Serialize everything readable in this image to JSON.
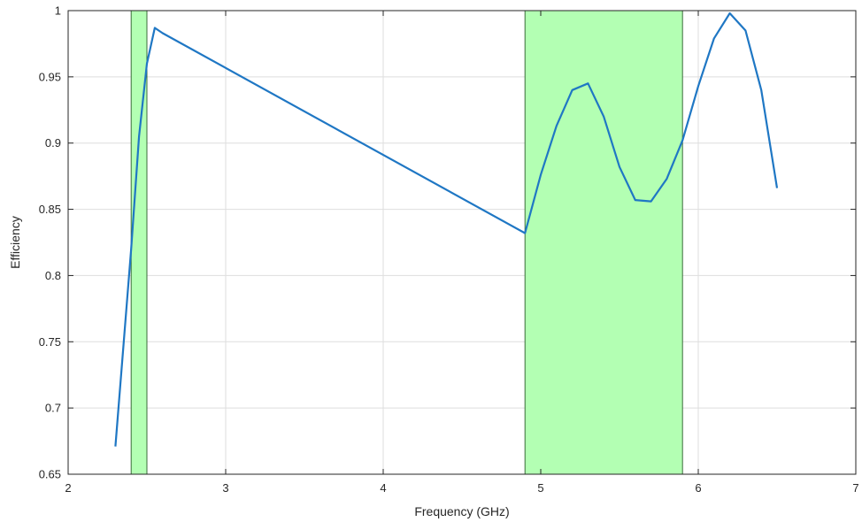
{
  "chart_data": {
    "type": "line",
    "title": "",
    "xlabel": "Frequency (GHz)",
    "ylabel": "Efficiency",
    "xlim": [
      2,
      7
    ],
    "ylim": [
      0.65,
      1
    ],
    "xticks": [
      2,
      3,
      4,
      5,
      6,
      7
    ],
    "xtick_labels": [
      "2",
      "3",
      "4",
      "5",
      "6",
      "7"
    ],
    "yticks": [
      0.65,
      0.7,
      0.75,
      0.8,
      0.85,
      0.9,
      0.95,
      1
    ],
    "ytick_labels": [
      "0.65",
      "0.7",
      "0.75",
      "0.8",
      "0.85",
      "0.9",
      "0.95",
      "1"
    ],
    "grid": true,
    "line_color": "#1f77c4",
    "band_color": "#b3ffb3",
    "band_edge_color": "#3a6b3a",
    "bands": [
      {
        "x0": 2.4,
        "x1": 2.5
      },
      {
        "x0": 4.9,
        "x1": 5.9
      }
    ],
    "series": [
      {
        "x": [
          2.3,
          2.4,
          2.45,
          2.5,
          2.55,
          2.6,
          4.9,
          5.0,
          5.1,
          5.2,
          5.3,
          5.4,
          5.5,
          5.6,
          5.7,
          5.8,
          5.9,
          6.0,
          6.1,
          6.2,
          6.3,
          6.4,
          6.5
        ],
        "y": [
          0.671,
          0.82,
          0.905,
          0.96,
          0.987,
          0.983,
          0.832,
          0.876,
          0.913,
          0.94,
          0.945,
          0.92,
          0.882,
          0.857,
          0.856,
          0.873,
          0.902,
          0.943,
          0.979,
          0.998,
          0.985,
          0.94,
          0.866
        ]
      }
    ]
  }
}
